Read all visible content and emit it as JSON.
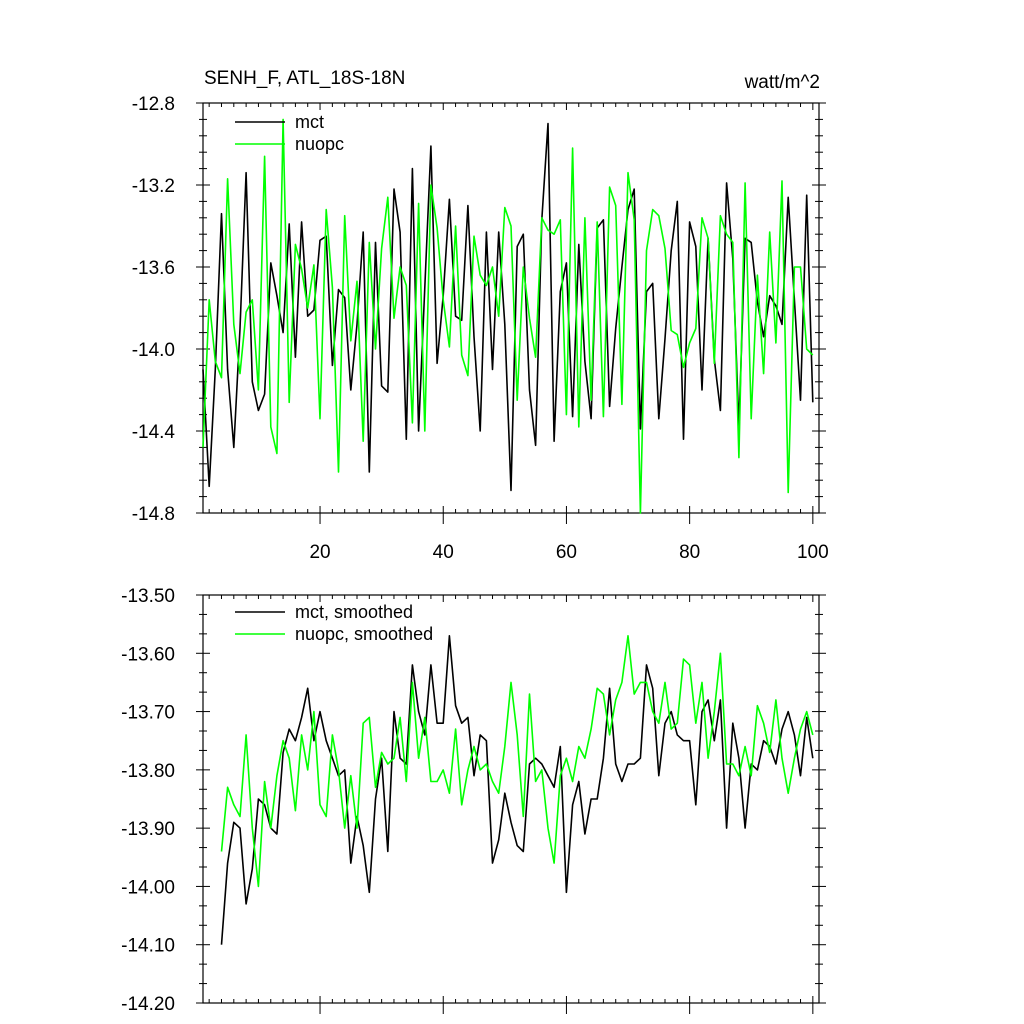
{
  "chart_data": [
    {
      "type": "line",
      "title": "SENH_F, ATL_18S-18N",
      "units": "watt/m^2",
      "xlim": [
        1,
        101
      ],
      "ylim": [
        -14.8,
        -12.8
      ],
      "x_ticks": [
        20,
        40,
        60,
        80,
        100
      ],
      "x_tick_labels": [
        "20",
        "40",
        "60",
        "80",
        "100"
      ],
      "y_ticks": [
        -14.8,
        -14.4,
        -14.0,
        -13.6,
        -13.2,
        -12.8
      ],
      "y_tick_labels": [
        "-14.8",
        "-14.4",
        "-14.0",
        "-13.6",
        "-13.2",
        "-12.8"
      ],
      "legend_position": "top-left",
      "grid": false,
      "series": [
        {
          "name": "mct",
          "color": "#000000",
          "x_start": 1,
          "values": [
            -14.1,
            -14.67,
            -14.1,
            -13.34,
            -14.1,
            -14.48,
            -13.9,
            -13.14,
            -14.16,
            -14.3,
            -14.22,
            -13.58,
            -13.74,
            -13.92,
            -13.39,
            -14.04,
            -13.38,
            -13.84,
            -13.81,
            -13.47,
            -13.45,
            -14.08,
            -13.71,
            -13.75,
            -14.2,
            -13.88,
            -13.43,
            -14.6,
            -13.48,
            -14.18,
            -14.21,
            -13.22,
            -13.43,
            -14.44,
            -13.12,
            -14.4,
            -13.7,
            -13.01,
            -14.07,
            -13.74,
            -13.27,
            -13.84,
            -13.86,
            -13.3,
            -13.94,
            -14.4,
            -13.43,
            -14.1,
            -13.43,
            -13.88,
            -14.69,
            -13.5,
            -13.44,
            -14.2,
            -14.47,
            -13.37,
            -12.9,
            -14.45,
            -13.72,
            -13.58,
            -14.33,
            -13.49,
            -14.06,
            -14.34,
            -13.41,
            -13.37,
            -14.28,
            -13.9,
            -13.6,
            -13.32,
            -13.22,
            -14.39,
            -13.72,
            -13.68,
            -14.34,
            -13.95,
            -13.52,
            -13.28,
            -14.44,
            -13.38,
            -13.5,
            -14.2,
            -13.46,
            -14.05,
            -14.3,
            -13.19,
            -13.56,
            -14.38,
            -13.46,
            -13.48,
            -13.77,
            -13.94,
            -13.74,
            -13.79,
            -13.88,
            -13.26,
            -13.76,
            -14.25,
            -13.25,
            -14.26
          ]
        },
        {
          "name": "nuopc",
          "color": "#00ff00",
          "x_start": 1,
          "values": [
            -14.48,
            -13.76,
            -14.06,
            -14.14,
            -13.17,
            -13.88,
            -14.12,
            -13.82,
            -13.76,
            -14.2,
            -13.06,
            -14.38,
            -14.51,
            -12.88,
            -14.26,
            -13.49,
            -13.61,
            -13.8,
            -13.59,
            -14.34,
            -13.32,
            -13.7,
            -14.6,
            -13.35,
            -13.96,
            -13.67,
            -14.45,
            -13.48,
            -14.0,
            -13.51,
            -13.26,
            -13.85,
            -13.6,
            -13.69,
            -14.36,
            -13.29,
            -14.4,
            -13.2,
            -13.41,
            -13.76,
            -13.99,
            -13.4,
            -14.03,
            -14.13,
            -13.45,
            -13.64,
            -13.69,
            -13.6,
            -13.84,
            -13.31,
            -13.4,
            -14.25,
            -13.6,
            -13.85,
            -14.04,
            -13.36,
            -13.42,
            -13.44,
            -13.37,
            -14.32,
            -13.02,
            -14.38,
            -13.36,
            -14.25,
            -13.38,
            -14.33,
            -13.21,
            -13.3,
            -14.27,
            -13.14,
            -13.37,
            -14.8,
            -13.52,
            -13.32,
            -13.35,
            -13.51,
            -13.91,
            -13.93,
            -14.09,
            -13.97,
            -13.9,
            -13.36,
            -13.46,
            -14.07,
            -13.35,
            -13.44,
            -13.48,
            -14.53,
            -13.19,
            -14.34,
            -13.64,
            -14.12,
            -13.43,
            -13.97,
            -13.18,
            -14.7,
            -13.6,
            -13.6,
            -14.0,
            -14.03
          ]
        }
      ]
    },
    {
      "type": "line",
      "xlim": [
        1,
        101
      ],
      "ylim": [
        -14.2,
        -13.5
      ],
      "x_ticks": [
        20,
        40,
        60,
        80,
        100
      ],
      "x_tick_labels": [],
      "y_ticks": [
        -14.2,
        -14.1,
        -14.0,
        -13.9,
        -13.8,
        -13.7,
        -13.6,
        -13.5
      ],
      "y_tick_labels": [
        "-14.20",
        "-14.10",
        "-14.00",
        "-13.90",
        "-13.80",
        "-13.70",
        "-13.60",
        "-13.50"
      ],
      "legend_position": "top-left",
      "grid": false,
      "series": [
        {
          "name": "mct, smoothed",
          "color": "#000000",
          "x_start": 4,
          "values": [
            -14.1,
            -13.96,
            -13.89,
            -13.9,
            -14.03,
            -13.97,
            -13.85,
            -13.86,
            -13.9,
            -13.91,
            -13.77,
            -13.73,
            -13.75,
            -13.71,
            -13.66,
            -13.75,
            -13.7,
            -13.75,
            -13.78,
            -13.81,
            -13.8,
            -13.96,
            -13.88,
            -13.93,
            -14.01,
            -13.85,
            -13.78,
            -13.94,
            -13.7,
            -13.78,
            -13.79,
            -13.62,
            -13.7,
            -13.74,
            -13.62,
            -13.72,
            -13.72,
            -13.57,
            -13.69,
            -13.72,
            -13.71,
            -13.81,
            -13.74,
            -13.75,
            -13.96,
            -13.92,
            -13.84,
            -13.89,
            -13.93,
            -13.94,
            -13.79,
            -13.78,
            -13.79,
            -13.81,
            -13.83,
            -13.76,
            -14.01,
            -13.86,
            -13.82,
            -13.91,
            -13.85,
            -13.85,
            -13.78,
            -13.66,
            -13.79,
            -13.82,
            -13.79,
            -13.79,
            -13.78,
            -13.62,
            -13.66,
            -13.81,
            -13.72,
            -13.7,
            -13.74,
            -13.75,
            -13.75,
            -13.86,
            -13.7,
            -13.68,
            -13.75,
            -13.68,
            -13.9,
            -13.72,
            -13.78,
            -13.9,
            -13.79,
            -13.8,
            -13.75,
            -13.76,
            -13.79,
            -13.73,
            -13.7,
            -13.74,
            -13.81,
            -13.71,
            -13.78
          ]
        },
        {
          "name": "nuopc, smoothed",
          "color": "#00ff00",
          "x_start": 4,
          "values": [
            -13.94,
            -13.83,
            -13.86,
            -13.88,
            -13.74,
            -13.9,
            -14.0,
            -13.82,
            -13.9,
            -13.81,
            -13.75,
            -13.78,
            -13.87,
            -13.74,
            -13.8,
            -13.7,
            -13.86,
            -13.88,
            -13.74,
            -13.8,
            -13.9,
            -13.81,
            -13.9,
            -13.72,
            -13.71,
            -13.83,
            -13.77,
            -13.79,
            -13.78,
            -13.71,
            -13.82,
            -13.65,
            -13.78,
            -13.71,
            -13.82,
            -13.82,
            -13.8,
            -13.84,
            -13.73,
            -13.86,
            -13.8,
            -13.76,
            -13.8,
            -13.79,
            -13.82,
            -13.84,
            -13.76,
            -13.65,
            -13.74,
            -13.88,
            -13.67,
            -13.82,
            -13.8,
            -13.9,
            -13.96,
            -13.81,
            -13.78,
            -13.82,
            -13.76,
            -13.78,
            -13.73,
            -13.66,
            -13.67,
            -13.74,
            -13.68,
            -13.65,
            -13.57,
            -13.67,
            -13.65,
            -13.65,
            -13.7,
            -13.72,
            -13.65,
            -13.73,
            -13.72,
            -13.61,
            -13.62,
            -13.72,
            -13.65,
            -13.78,
            -13.7,
            -13.6,
            -13.79,
            -13.79,
            -13.81,
            -13.76,
            -13.81,
            -13.69,
            -13.72,
            -13.77,
            -13.68,
            -13.78,
            -13.84,
            -13.78,
            -13.73,
            -13.7,
            -13.74
          ]
        }
      ]
    }
  ]
}
